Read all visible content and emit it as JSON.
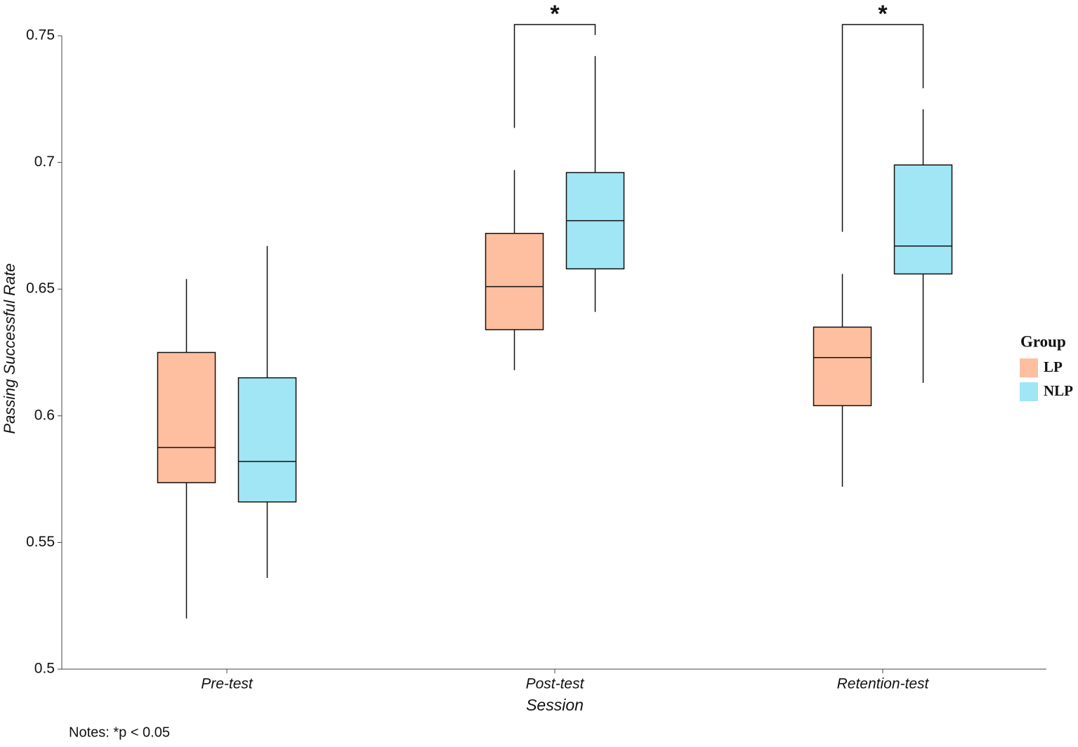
{
  "chart_data": {
    "type": "box",
    "y_label": "Passing Successful Rate",
    "x_label": "Session",
    "categories": [
      "Pre-test",
      "Post-test",
      "Retention-test"
    ],
    "series": [
      {
        "name": "LP",
        "color": "#fdbf9f",
        "min": [
          0.52,
          0.618,
          0.572
        ],
        "q1": [
          0.5736,
          0.634,
          0.604
        ],
        "median": [
          0.5875,
          0.651,
          0.623
        ],
        "q3": [
          0.625,
          0.672,
          0.635
        ],
        "max": [
          0.654,
          0.697,
          0.656
        ]
      },
      {
        "name": "NLP",
        "color": "#a0e6f4",
        "min": [
          0.536,
          0.641,
          0.613
        ],
        "q1": [
          0.566,
          0.658,
          0.656
        ],
        "median": [
          0.582,
          0.677,
          0.667
        ],
        "q3": [
          0.615,
          0.696,
          0.699
        ],
        "max": [
          0.667,
          0.742,
          0.721
        ]
      }
    ],
    "significance": [
      null,
      "*",
      "*"
    ],
    "legend_title": "Group",
    "legend_position": "right",
    "ylim": [
      0.5,
      0.75
    ],
    "yticks": [
      0.5,
      0.55,
      0.6,
      0.65,
      0.7,
      0.75
    ],
    "note": "Notes: *p < 0.05"
  }
}
